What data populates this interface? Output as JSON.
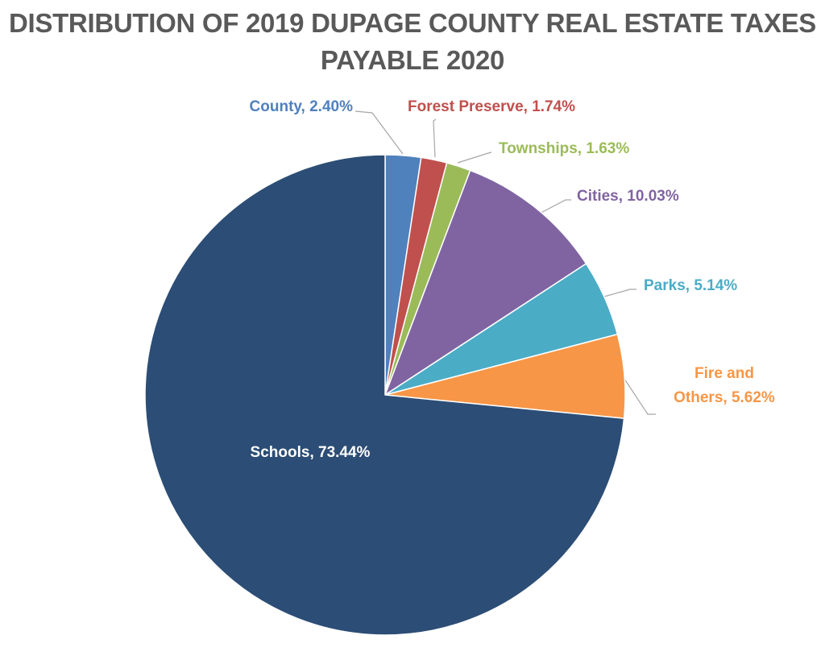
{
  "chart_data": {
    "type": "pie",
    "title_line1": "DISTRIBUTION OF 2019 DUPAGE COUNTY REAL ESTATE TAXES",
    "title_line2": "PAYABLE 2020",
    "slices": [
      {
        "label": "County, 2.40%",
        "value": 2.4,
        "color": "#4F81BD"
      },
      {
        "label": "Forest Preserve, 1.74%",
        "value": 1.74,
        "color": "#C0504D"
      },
      {
        "label": "Townships, 1.63%",
        "value": 1.63,
        "color": "#9BBB59"
      },
      {
        "label": "Cities, 10.03%",
        "value": 10.03,
        "color": "#8064A2"
      },
      {
        "label": "Parks, 5.14%",
        "value": 5.14,
        "color": "#4BACC6"
      },
      {
        "label": "Fire and Others, 5.62%",
        "label_lines": [
          "Fire and",
          "Others, 5.62%"
        ],
        "value": 5.62,
        "color": "#F79646"
      },
      {
        "label": "Schools, 73.44%",
        "value": 73.44,
        "color": "#2C4D75"
      }
    ],
    "start_angle": "12 o'clock",
    "direction": "clockwise",
    "legend": "none",
    "data_labels": "category name and percentage"
  }
}
